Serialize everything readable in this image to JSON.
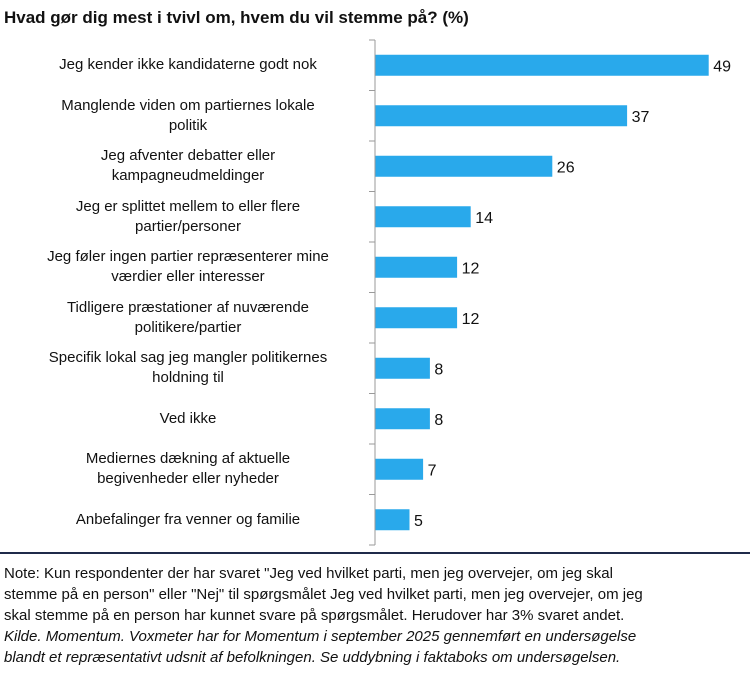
{
  "chart_data": {
    "type": "bar",
    "orientation": "horizontal",
    "title": "Hvad gør dig mest i tvivl om, hvem du vil stemme på? (%)",
    "categories": [
      [
        "Jeg kender ikke kandidaterne godt nok"
      ],
      [
        "Manglende viden om partiernes lokale",
        "politik"
      ],
      [
        "Jeg afventer debatter eller",
        "kampagneudmeldinger"
      ],
      [
        "Jeg er splittet mellem to eller flere",
        "partier/personer"
      ],
      [
        "Jeg føler ingen partier repræsenterer mine",
        "værdier eller interesser"
      ],
      [
        "Tidligere præstationer af nuværende",
        "politikere/partier"
      ],
      [
        "Specifik lokal sag jeg mangler politikernes",
        "holdning til"
      ],
      [
        "Ved ikke"
      ],
      [
        "Mediernes dækning af aktuelle",
        "begivenheder eller nyheder"
      ],
      [
        "Anbefalinger fra venner og familie"
      ]
    ],
    "values": [
      49,
      37,
      26,
      14,
      12,
      12,
      8,
      8,
      7,
      5
    ],
    "data_labels": true,
    "xlim": [
      0,
      50
    ],
    "grid": false,
    "bar_color": "#29A9EB"
  },
  "notes": [
    "Note: Kun respondenter der har svaret \"Jeg ved hvilket parti, men jeg overvejer, om jeg skal",
    "stemme på en person\" eller \"Nej\" til spørgsmålet Jeg ved hvilket parti, men jeg overvejer, om jeg",
    "skal stemme på en person har kunnet svare på spørgsmålet. Herudover har 3% svaret andet."
  ],
  "source": [
    "Kilde. Momentum. Voxmeter har for Momentum i september 2025 gennemført en undersøgelse",
    "blandt et repræsentativt udsnit af befolkningen. Se uddybning i faktaboks om undersøgelsen."
  ]
}
